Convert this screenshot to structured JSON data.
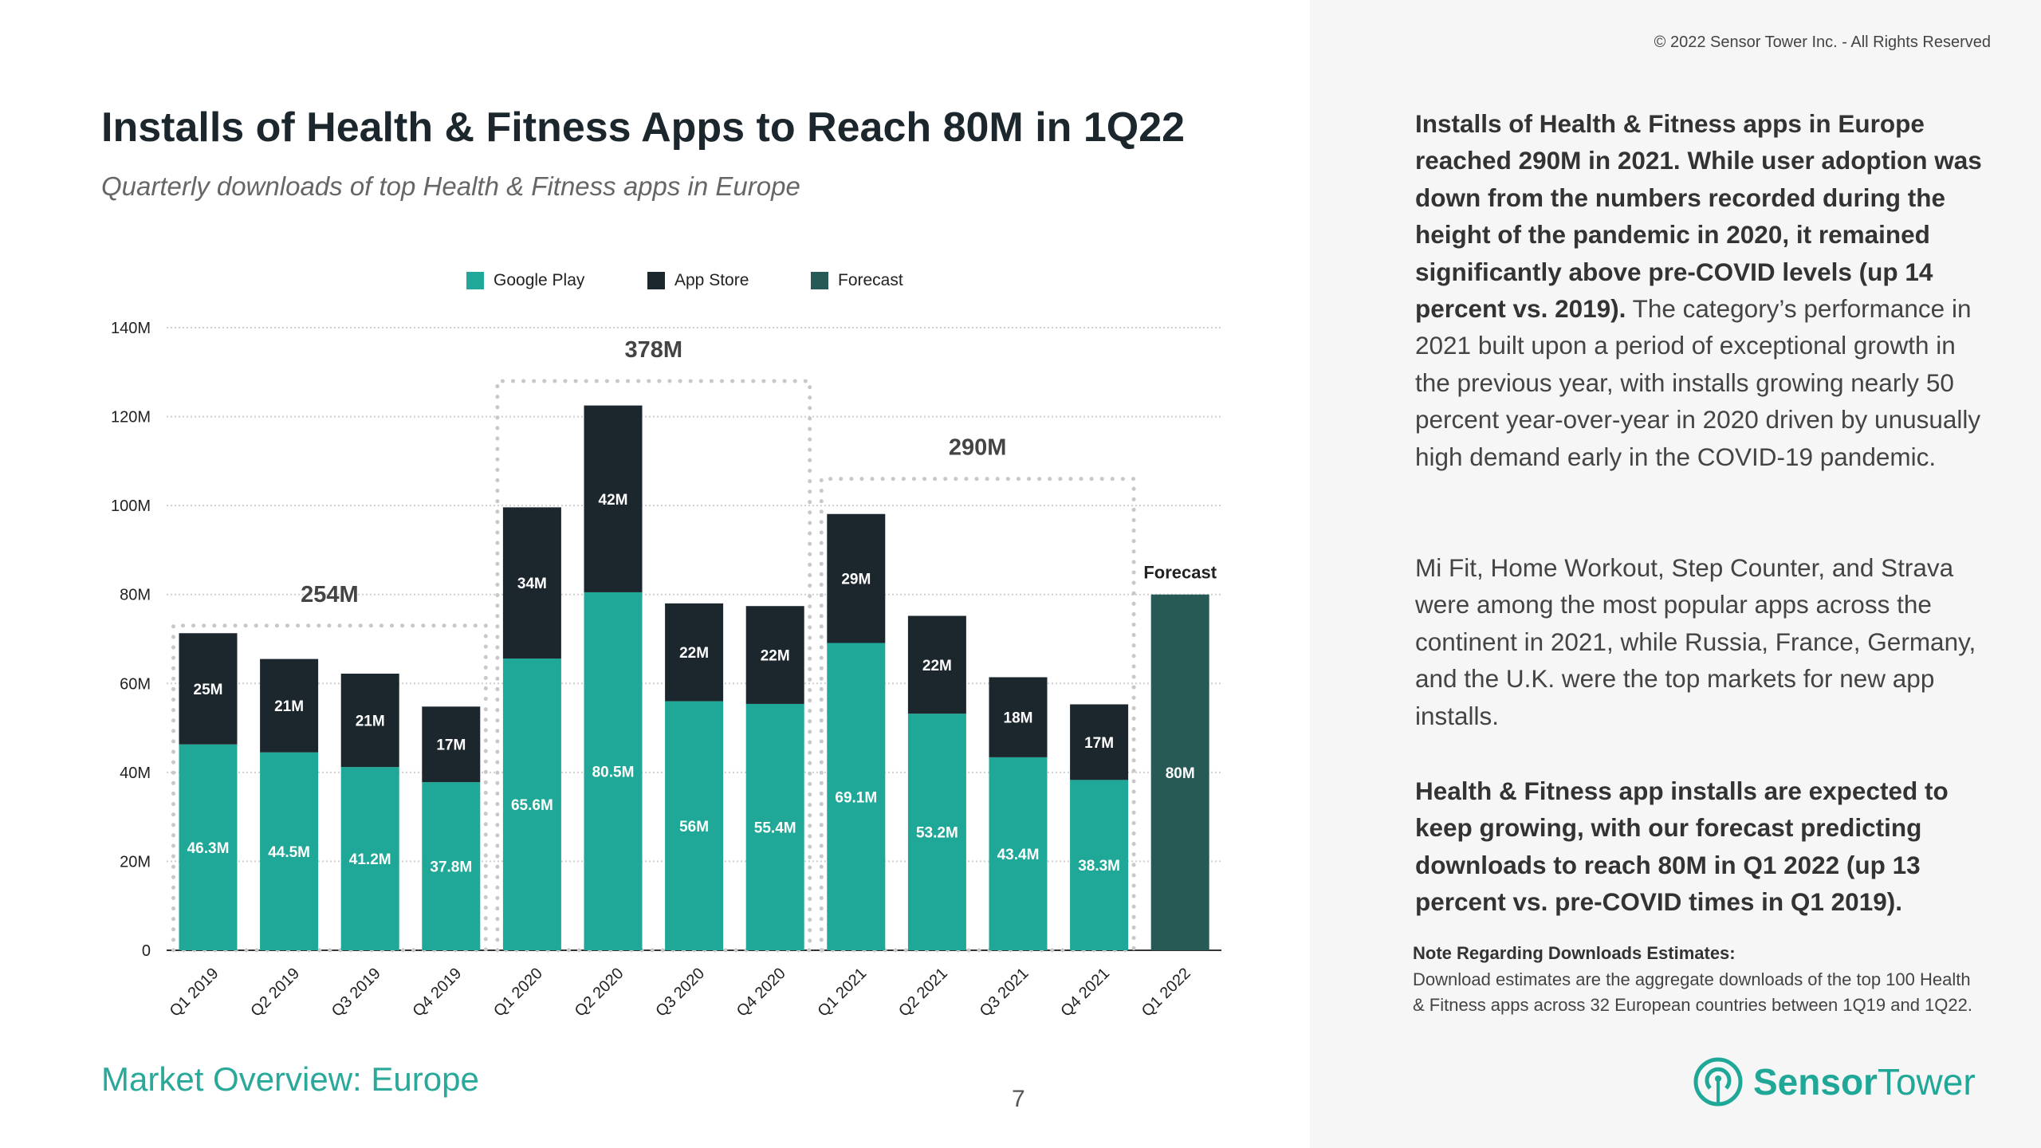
{
  "header": {
    "title": "Installs of Health & Fitness Apps to Reach 80M in 1Q22",
    "subtitle": "Quarterly downloads of top Health & Fitness apps in Europe"
  },
  "colors": {
    "google_play": "#1fa898",
    "app_store": "#1c272d",
    "forecast": "#275a55",
    "accent": "#2aa89a"
  },
  "chart_data": {
    "type": "bar",
    "stacked": true,
    "title": "Installs of Health & Fitness Apps to Reach 80M in 1Q22",
    "subtitle": "Quarterly downloads of top Health & Fitness apps in Europe",
    "categories": [
      "Q1 2019",
      "Q2 2019",
      "Q3 2019",
      "Q4 2019",
      "Q1 2020",
      "Q2 2020",
      "Q3 2020",
      "Q4 2020",
      "Q1 2021",
      "Q2 2021",
      "Q3 2021",
      "Q4 2021",
      "Q1 2022"
    ],
    "series": [
      {
        "name": "Google Play",
        "values": [
          46.3,
          44.5,
          41.2,
          37.8,
          65.6,
          80.5,
          56,
          55.4,
          69.1,
          53.2,
          43.4,
          38.3,
          null
        ],
        "labels": [
          "46.3M",
          "44.5M",
          "41.2M",
          "37.8M",
          "65.6M",
          "80.5M",
          "56M",
          "55.4M",
          "69.1M",
          "53.2M",
          "43.4M",
          "38.3M",
          null
        ]
      },
      {
        "name": "App Store",
        "values": [
          25,
          21,
          21,
          17,
          34,
          42,
          22,
          22,
          29,
          22,
          18,
          17,
          null
        ],
        "labels": [
          "25M",
          "21M",
          "21M",
          "17M",
          "34M",
          "42M",
          "22M",
          "22M",
          "29M",
          "22M",
          "18M",
          "17M",
          null
        ]
      },
      {
        "name": "Forecast",
        "values": [
          null,
          null,
          null,
          null,
          null,
          null,
          null,
          null,
          null,
          null,
          null,
          null,
          80
        ],
        "labels": [
          null,
          null,
          null,
          null,
          null,
          null,
          null,
          null,
          null,
          null,
          null,
          null,
          "80M"
        ]
      }
    ],
    "legend": [
      "Google Play",
      "App Store",
      "Forecast"
    ],
    "legend_position": "top-center",
    "yticks": [
      "0",
      "20M",
      "40M",
      "60M",
      "80M",
      "100M",
      "120M",
      "140M"
    ],
    "ylim": [
      0,
      140
    ],
    "grid": true,
    "annotations": [
      {
        "text": "254M",
        "group": [
          0,
          3
        ],
        "box_top": 73
      },
      {
        "text": "378M",
        "group": [
          4,
          7
        ],
        "box_top": 128
      },
      {
        "text": "290M",
        "group": [
          8,
          11
        ],
        "box_top": 106
      },
      {
        "text": "Forecast",
        "group": [
          12,
          12
        ],
        "box_top": null
      }
    ]
  },
  "footer": {
    "section": "Market Overview: Europe",
    "page": "7"
  },
  "sidebar": {
    "copyright": "© 2022 Sensor Tower Inc. - All Rights Reserved",
    "p1_bold": "Installs of Health & Fitness apps in Europe reached 290M in 2021. While user adoption was down from the numbers recorded during the height of the pandemic in 2020, it remained significantly above pre-COVID levels (up 14 percent vs. 2019).",
    "p1_rest": " The category’s performance in 2021 built upon a period of exceptional growth in the previous year, with installs growing nearly 50 percent year-over-year in 2020 driven by unusually high demand early in the COVID-19 pandemic.",
    "p2": "Mi Fit, Home Workout, Step Counter, and Strava were among the most popular apps across the continent in 2021, while Russia, France, Germany, and the U.K. were the top markets for new app installs.",
    "p3_bold": "Health & Fitness app installs are expected to keep growing, with our forecast predicting downloads to reach 80M in Q1 2022 (up 13 percent vs. pre-COVID times in Q1 2019).",
    "note_title": "Note Regarding Downloads Estimates:",
    "note_body": "Download estimates are the aggregate downloads of the top 100 Health & Fitness apps across 32 European countries between 1Q19 and 1Q22.",
    "logo_text": "Sensor Tower"
  }
}
